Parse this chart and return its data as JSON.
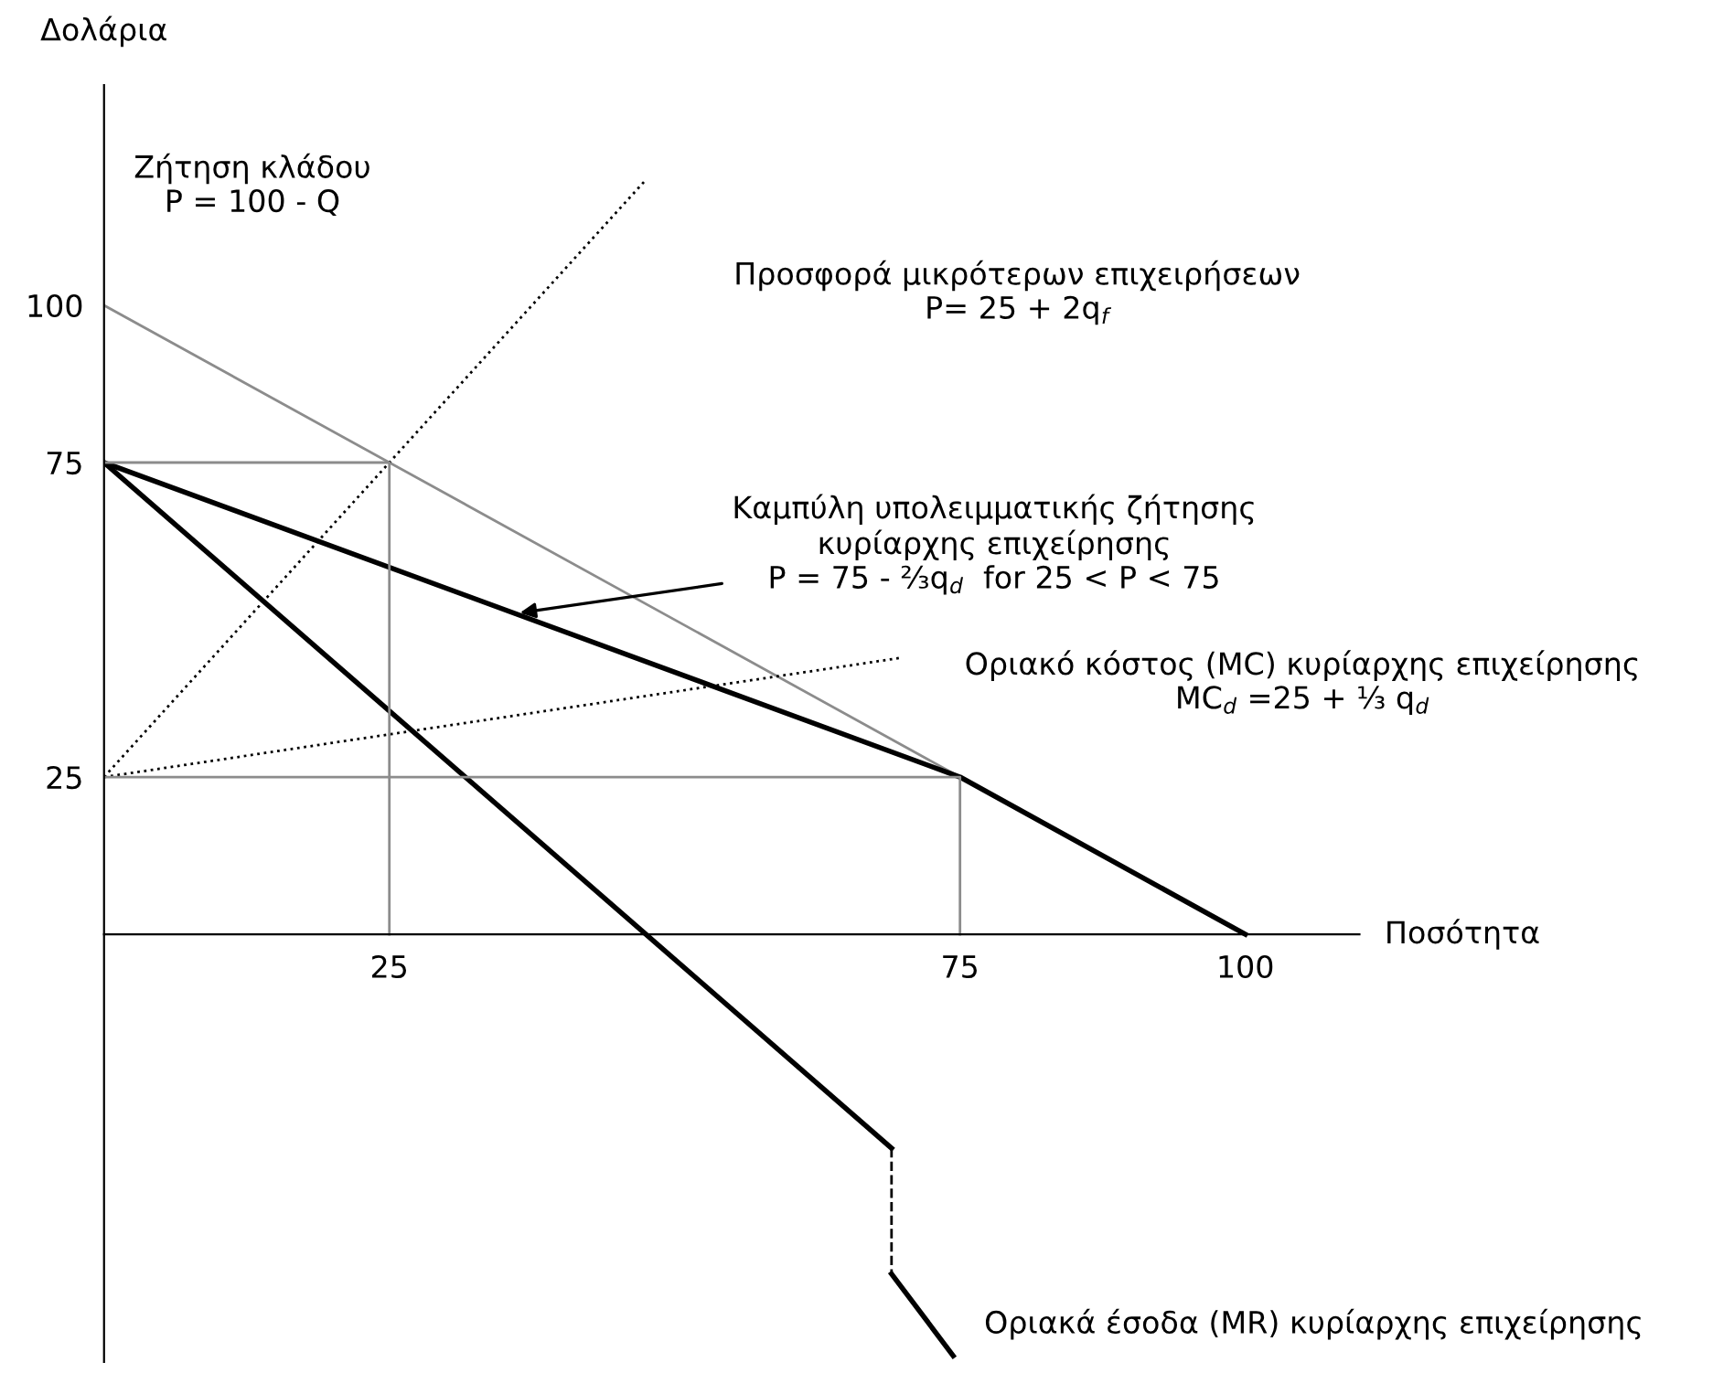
{
  "chart_data": {
    "type": "line",
    "xlabel": "Ποσότητα",
    "ylabel": "Δολάρια",
    "xlim": [
      0,
      110
    ],
    "ylim": [
      -68,
      135
    ],
    "xticks": [
      25,
      75,
      100
    ],
    "yticks": [
      25,
      75,
      100
    ],
    "grid": false,
    "legend": false,
    "marker": "none",
    "series": [
      {
        "color": "#8c8c8c",
        "line_style": "solid",
        "x": [
          0,
          75
        ],
        "values": [
          100,
          25
        ]
      },
      {
        "color": "#000000",
        "line_style": "dotted",
        "x": [
          0,
          47.5
        ],
        "values": [
          25,
          120
        ]
      },
      {
        "color": "#000000",
        "line_style": "solid",
        "x": [
          0,
          75,
          100
        ],
        "values": [
          75,
          25,
          0
        ]
      },
      {
        "color": "#000000",
        "line_style": "dotted",
        "x": [
          0,
          70
        ],
        "values": [
          25,
          44
        ]
      },
      {
        "color": "#000000",
        "line_style": "solid",
        "x": [
          0,
          69
        ],
        "values": [
          75,
          -34
        ]
      },
      {
        "color": "#000000",
        "line_style": "dashed",
        "x": [
          69,
          69
        ],
        "values": [
          -34,
          -54
        ]
      },
      {
        "color": "#000000",
        "line_style": "solid",
        "x": [
          69,
          74.4
        ],
        "values": [
          -54,
          -67
        ]
      },
      {
        "color": "#8c8c8c",
        "line_style": "solid",
        "x": [
          0,
          25,
          25
        ],
        "values": [
          75,
          75,
          0
        ]
      },
      {
        "color": "#8c8c8c",
        "line_style": "solid",
        "x": [
          0,
          75,
          75
        ],
        "values": [
          25,
          25,
          0
        ]
      }
    ],
    "annotations": [
      "Ζήτηση κλάδου\nP = 100 - Q",
      "Προσφορά μικρότερων επιχειρήσεων\nP= 25 + 2q$_{f}$",
      {
        "text": "Καμπύλη υπολειμματικής ζήτησης\nκυρίαρχης επιχείρησης\nP = 75 - ⅔q$_{d}$  for 25 < P < 75",
        "x": 36,
        "y": 51
      },
      "Οριακό κόστος (MC) κυρίαρχης επιχείρησης\nMC$_{d}$ =25 + ⅓ q$_{d}$",
      "Οριακά έσοδα (MR) κυρίαρχης επιχείρησης"
    ]
  }
}
